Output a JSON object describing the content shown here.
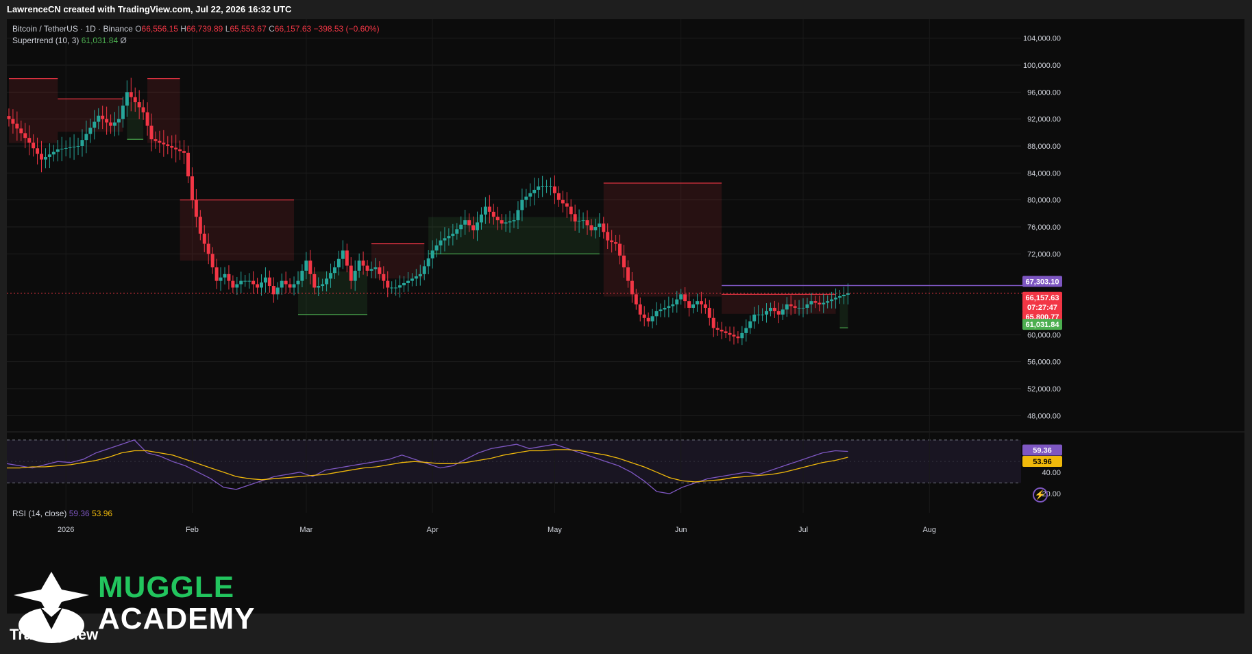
{
  "attribution": "LawrenceCN created with TradingView.com, Jul 22, 2026 16:32 UTC",
  "legend": {
    "symbol": "Bitcoin / TetherUS · 1D · Binance",
    "o_label": "O",
    "o_value": "66,556.15",
    "h_label": "H",
    "h_value": "66,739.89",
    "l_label": "L",
    "l_value": "65,553.67",
    "c_label": "C",
    "c_value": "66,157.63",
    "change": "−398.53 (−0.60%)",
    "supertrend_label": "Supertrend (10, 3)",
    "supertrend_value": "61,031.84",
    "supertrend_icon": "Ø",
    "rsi_label": "RSI (14, close)",
    "rsi_value": "59.36",
    "rsi_ma_value": "53.96"
  },
  "price_tags": {
    "resistance": "67,303.10",
    "last_price": "66,157.63",
    "countdown": "07:27:47",
    "supertrend_upper": "65,800.77",
    "supertrend_lower": "61,031.84",
    "rsi": "59.36",
    "rsi_ma": "53.96"
  },
  "colors": {
    "up": "#26a69a",
    "down": "#f23645",
    "st_up": "#4caf50",
    "st_down": "#f23645",
    "rsi": "#7e57c2",
    "rsi_ma": "#f0b90b",
    "resistance": "#7e57c2"
  },
  "logo": {
    "line1": "MUGGLE",
    "line2": "ACADEMY",
    "tv": "TradingView"
  },
  "icons": [
    "lightning-icon",
    "muggle-logo-icon"
  ],
  "chart_data": [
    {
      "type": "candlestick",
      "title": "Bitcoin / TetherUS · 1D · Binance",
      "ylim": [
        46000,
        106000
      ],
      "y_ticks": [
        "104,000.00",
        "100,000.00",
        "96,000.00",
        "92,000.00",
        "88,000.00",
        "84,000.00",
        "80,000.00",
        "76,000.00",
        "72,000.00",
        "60,000.00",
        "56,000.00",
        "52,000.00",
        "48,000.00"
      ],
      "x_ticks": [
        {
          "label": "2026",
          "date": "2026-01-01"
        },
        {
          "label": "Feb",
          "date": "2026-02-01"
        },
        {
          "label": "Mar",
          "date": "2026-03-01"
        },
        {
          "label": "Apr",
          "date": "2026-04-01"
        },
        {
          "label": "May",
          "date": "2026-05-01"
        },
        {
          "label": "Jun",
          "date": "2026-06-01"
        },
        {
          "label": "Jul",
          "date": "2026-07-01"
        },
        {
          "label": "Aug",
          "date": "2026-08-01"
        }
      ],
      "first_date": "2025-12-18",
      "close_path": [
        [
          0,
          92000
        ],
        [
          5,
          88500
        ],
        [
          8,
          86000
        ],
        [
          12,
          87500
        ],
        [
          17,
          88000
        ],
        [
          22,
          92500
        ],
        [
          25,
          91000
        ],
        [
          27,
          92000
        ],
        [
          29,
          96000
        ],
        [
          31,
          94500
        ],
        [
          33,
          93000
        ],
        [
          35,
          89000
        ],
        [
          37,
          88500
        ],
        [
          39,
          88000
        ],
        [
          41,
          87500
        ],
        [
          43,
          87000
        ],
        [
          45,
          80000
        ],
        [
          47,
          75000
        ],
        [
          49,
          72000
        ],
        [
          51,
          68000
        ],
        [
          53,
          69000
        ],
        [
          55,
          67000
        ],
        [
          57,
          68000
        ],
        [
          59,
          68000
        ],
        [
          61,
          67000
        ],
        [
          63,
          68500
        ],
        [
          65,
          66000
        ],
        [
          67,
          68000
        ],
        [
          69,
          67000
        ],
        [
          71,
          68000
        ],
        [
          73,
          71000
        ],
        [
          75,
          67000
        ],
        [
          77,
          67500
        ],
        [
          80,
          70000
        ],
        [
          82,
          72500
        ],
        [
          84,
          68000
        ],
        [
          86,
          71000
        ],
        [
          88,
          69500
        ],
        [
          90,
          70000
        ],
        [
          93,
          67000
        ],
        [
          95,
          67000
        ],
        [
          98,
          68000
        ],
        [
          101,
          69000
        ],
        [
          104,
          72500
        ],
        [
          106,
          74000
        ],
        [
          109,
          75000
        ],
        [
          112,
          77000
        ],
        [
          114,
          75500
        ],
        [
          117,
          79000
        ],
        [
          119,
          77500
        ],
        [
          121,
          76500
        ],
        [
          124,
          77000
        ],
        [
          126,
          80000
        ],
        [
          128,
          81000
        ],
        [
          130,
          82000
        ],
        [
          133,
          82000
        ],
        [
          135,
          80000
        ],
        [
          137,
          79000
        ],
        [
          139,
          76800
        ],
        [
          141,
          77000
        ],
        [
          143,
          75500
        ],
        [
          145,
          76500
        ],
        [
          147,
          74000
        ],
        [
          149,
          73500
        ],
        [
          151,
          70000
        ],
        [
          153,
          66000
        ],
        [
          155,
          63000
        ],
        [
          157,
          62000
        ],
        [
          159,
          63500
        ],
        [
          161,
          64000
        ],
        [
          163,
          64500
        ],
        [
          165,
          66000
        ],
        [
          167,
          64000
        ],
        [
          169,
          65000
        ],
        [
          171,
          64000
        ],
        [
          173,
          61000
        ],
        [
          175,
          60500
        ],
        [
          177,
          60000
        ],
        [
          179,
          59500
        ],
        [
          181,
          61000
        ],
        [
          183,
          63000
        ],
        [
          185,
          63000
        ],
        [
          187,
          64000
        ],
        [
          189,
          63000
        ],
        [
          191,
          64500
        ],
        [
          193,
          64000
        ],
        [
          195,
          64000
        ],
        [
          197,
          65000
        ],
        [
          199,
          64500
        ],
        [
          201,
          65000
        ],
        [
          203,
          65500
        ],
        [
          206,
          66157.63
        ]
      ],
      "supertrend": {
        "upper": "65,800.77",
        "lower": "61,031.84",
        "segments": [
          {
            "trend": "down",
            "from_day": 0,
            "to_day": 12,
            "level": 98000
          },
          {
            "trend": "down",
            "from_day": 12,
            "to_day": 28,
            "level": 95000
          },
          {
            "trend": "up",
            "from_day": 29,
            "to_day": 33,
            "level": 89000
          },
          {
            "trend": "down",
            "from_day": 34,
            "to_day": 42,
            "level": 98000
          },
          {
            "trend": "down",
            "from_day": 42,
            "to_day": 70,
            "level": 80000
          },
          {
            "trend": "up",
            "from_day": 71,
            "to_day": 88,
            "level": 63000
          },
          {
            "trend": "down",
            "from_day": 89,
            "to_day": 102,
            "level": 73500
          },
          {
            "trend": "up",
            "from_day": 103,
            "to_day": 145,
            "level": 72000
          },
          {
            "trend": "down",
            "from_day": 146,
            "to_day": 175,
            "level": 82500
          },
          {
            "trend": "down",
            "from_day": 175,
            "to_day": 203,
            "level": 66000
          },
          {
            "trend": "up",
            "from_day": 204,
            "to_day": 206,
            "level": 61031.84
          }
        ]
      },
      "resistance_level": 67303.1,
      "last_price": 66157.63
    },
    {
      "type": "line",
      "title": "RSI (14, close)",
      "ylim": [
        15,
        75
      ],
      "y_ticks": [
        "40.00",
        "20.00"
      ],
      "bands": [
        30,
        70
      ],
      "series": [
        {
          "name": "RSI",
          "values": [
            48,
            46,
            44,
            47,
            50,
            49,
            52,
            58,
            62,
            66,
            70,
            58,
            55,
            50,
            46,
            40,
            34,
            26,
            24,
            28,
            32,
            36,
            38,
            40,
            36,
            42,
            44,
            46,
            48,
            50,
            52,
            56,
            52,
            48,
            44,
            46,
            52,
            58,
            62,
            64,
            66,
            62,
            64,
            66,
            62,
            58,
            54,
            50,
            46,
            40,
            32,
            22,
            20,
            26,
            30,
            34,
            36,
            38,
            40,
            38,
            42,
            46,
            50,
            54,
            58,
            60,
            59.36
          ]
        },
        {
          "name": "MA",
          "values": [
            44,
            44,
            45,
            45,
            46,
            47,
            49,
            51,
            54,
            58,
            60,
            60,
            58,
            56,
            52,
            48,
            44,
            40,
            36,
            34,
            33,
            34,
            35,
            36,
            37,
            38,
            40,
            42,
            44,
            45,
            47,
            49,
            50,
            49,
            48,
            48,
            49,
            51,
            53,
            56,
            58,
            60,
            60,
            61,
            61,
            60,
            58,
            56,
            53,
            49,
            45,
            40,
            35,
            32,
            31,
            32,
            33,
            35,
            36,
            37,
            38,
            40,
            43,
            46,
            49,
            51,
            53.96
          ]
        }
      ]
    }
  ]
}
